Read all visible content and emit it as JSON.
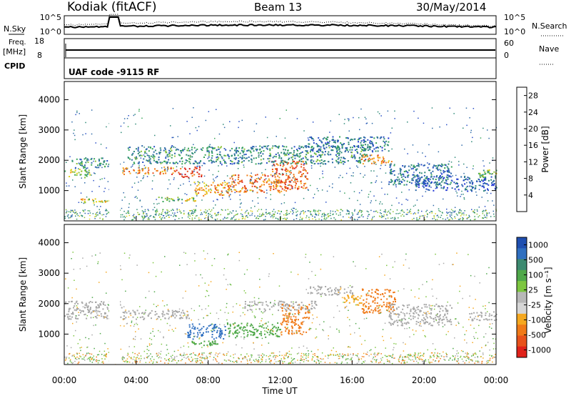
{
  "header": {
    "station": "Kodiak (fitACF)",
    "beam": "Beam 13",
    "date": "30/May/2014"
  },
  "top_panels": {
    "nsky_label": "N.Sky",
    "nsky_ticks": [
      "10^5",
      "10^0"
    ],
    "nsearch_label": "N.Search",
    "nsearch_ticks": [
      "10^5",
      "10^0"
    ],
    "freq_label": "Freq.",
    "freq_unit": "[MHz]",
    "freq_ticks": [
      "18",
      "8"
    ],
    "nave_label": "Nave",
    "nave_ticks": [
      "60",
      "0"
    ],
    "cpid_label": "CPID",
    "cpid_text": "UAF code -9115 RF"
  },
  "colors": {
    "power_scale": [
      "#1f33d6",
      "#2a4fc6",
      "#2e6aa8",
      "#2f8a78",
      "#3aa65a",
      "#8cc43a",
      "#e0d21a",
      "#f5a623",
      "#f07a18",
      "#e8521b",
      "#dc2a1e",
      "#cc141a"
    ],
    "velocity_scale": [
      "#1f4fb0",
      "#2f6fc0",
      "#3c8a70",
      "#4fa84a",
      "#7dc640",
      "#b8b8b8",
      "#d6d6d6",
      "#f5a820",
      "#f07a18",
      "#e8521b",
      "#e0221a"
    ],
    "ground_scatter": "#a8a8a8"
  },
  "chart_data": [
    {
      "type": "heatmap",
      "name": "power",
      "ylabel": "Slant Range [km]",
      "xlabel": "",
      "y_ticks": [
        "1000",
        "2000",
        "3000",
        "4000"
      ],
      "ylim": [
        0,
        4600
      ],
      "xlim": [
        0,
        24
      ],
      "colorbar_label": "Power [dB]",
      "colorbar_ticks": [
        "4",
        "8",
        "12",
        "16",
        "20",
        "24",
        "28"
      ],
      "colorbar_range": [
        0,
        30
      ],
      "echo_regions": [
        {
          "t0": 0.0,
          "t1": 1.4,
          "r0": 1450,
          "r1": 1750,
          "level": 14
        },
        {
          "t0": 0.4,
          "t1": 2.6,
          "r0": 1750,
          "r1": 2100,
          "level": 8
        },
        {
          "t0": 0.9,
          "t1": 2.6,
          "r0": 600,
          "r1": 750,
          "level": 16
        },
        {
          "t0": 3.2,
          "t1": 6.2,
          "r0": 1550,
          "r1": 1800,
          "level": 22
        },
        {
          "t0": 6.2,
          "t1": 7.6,
          "r0": 1450,
          "r1": 1800,
          "level": 26
        },
        {
          "t0": 5.2,
          "t1": 7.4,
          "r0": 650,
          "r1": 800,
          "level": 14
        },
        {
          "t0": 7.2,
          "t1": 9.2,
          "r0": 850,
          "r1": 1300,
          "level": 20
        },
        {
          "t0": 9.0,
          "t1": 12.5,
          "r0": 950,
          "r1": 1550,
          "level": 22
        },
        {
          "t0": 11.5,
          "t1": 13.5,
          "r0": 1050,
          "r1": 2000,
          "level": 24
        },
        {
          "t0": 3.5,
          "t1": 17.0,
          "r0": 1900,
          "r1": 2500,
          "level": 8
        },
        {
          "t0": 13.5,
          "t1": 18.0,
          "r0": 2300,
          "r1": 2800,
          "level": 6
        },
        {
          "t0": 16.5,
          "t1": 18.2,
          "r0": 1900,
          "r1": 2200,
          "level": 22
        },
        {
          "t0": 18.0,
          "t1": 21.5,
          "r0": 1200,
          "r1": 1900,
          "level": 6
        },
        {
          "t0": 19.5,
          "t1": 24.0,
          "r0": 1000,
          "r1": 1500,
          "level": 4
        },
        {
          "t0": 23.0,
          "t1": 24.0,
          "r0": 1450,
          "r1": 1700,
          "level": 12
        }
      ]
    },
    {
      "type": "heatmap",
      "name": "velocity",
      "ylabel": "Slant Range [km]",
      "xlabel": "Time UT",
      "x_ticks": [
        "00:00",
        "04:00",
        "08:00",
        "12:00",
        "16:00",
        "20:00",
        "00:00"
      ],
      "y_ticks": [
        "1000",
        "2000",
        "3000",
        "4000"
      ],
      "ylim": [
        0,
        4600
      ],
      "xlim": [
        0,
        24
      ],
      "colorbar_label": "Velocity [m s⁻¹]",
      "colorbar_ticks": [
        "1000",
        "500",
        "100",
        "25",
        "-25",
        "-100",
        "-500",
        "-1000"
      ],
      "echo_regions": [
        {
          "t0": 0.0,
          "t1": 3.2,
          "r0": 1500,
          "r1": 2100,
          "level": "ground"
        },
        {
          "t0": 3.2,
          "t1": 7.0,
          "r0": 1500,
          "r1": 1800,
          "level": "ground"
        },
        {
          "t0": 6.8,
          "t1": 9.0,
          "r0": 850,
          "r1": 1350,
          "level": 500
        },
        {
          "t0": 7.0,
          "t1": 8.5,
          "r0": 650,
          "r1": 800,
          "level": 100
        },
        {
          "t0": 9.0,
          "t1": 12.0,
          "r0": 900,
          "r1": 1400,
          "level": 100
        },
        {
          "t0": 12.0,
          "t1": 13.6,
          "r0": 1000,
          "r1": 2000,
          "level": -500
        },
        {
          "t0": 10.0,
          "t1": 14.0,
          "r0": 1800,
          "r1": 2100,
          "level": "ground"
        },
        {
          "t0": 13.5,
          "t1": 16.0,
          "r0": 2300,
          "r1": 2600,
          "level": "ground"
        },
        {
          "t0": 15.5,
          "t1": 16.5,
          "r0": 1900,
          "r1": 2350,
          "level": -100
        },
        {
          "t0": 16.5,
          "t1": 18.4,
          "r0": 1700,
          "r1": 2500,
          "level": -500
        },
        {
          "t0": 18.0,
          "t1": 21.5,
          "r0": 1300,
          "r1": 2000,
          "level": "ground"
        },
        {
          "t0": 22.5,
          "t1": 24.0,
          "r0": 1450,
          "r1": 1750,
          "level": "ground"
        }
      ]
    }
  ]
}
